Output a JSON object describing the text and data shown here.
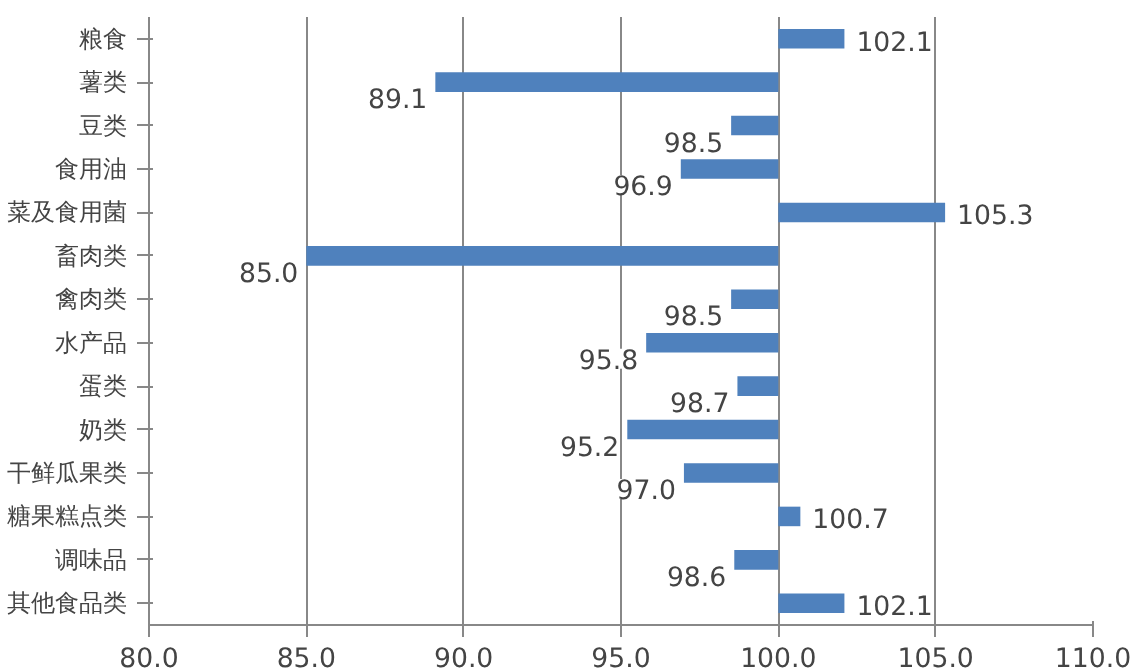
{
  "chart_data": {
    "type": "bar",
    "orientation": "horizontal",
    "categories": [
      "粮食",
      "薯类",
      "豆类",
      "食用油",
      "菜及食用菌",
      "畜肉类",
      "禽肉类",
      "水产品",
      "蛋类",
      "奶类",
      "干鲜瓜果类",
      "糖果糕点类",
      "调味品",
      "其他食品类"
    ],
    "base": [
      100,
      100,
      100,
      100,
      100,
      100,
      100,
      100,
      100,
      100,
      100,
      100,
      100,
      100
    ],
    "values": [
      2.1,
      -10.9,
      -1.5,
      -3.1,
      5.3,
      -15.0,
      -1.5,
      -4.2,
      -1.3,
      -4.8,
      -3.0,
      0.7,
      -1.4,
      2.1
    ],
    "value_labels": [
      "102.1",
      "89.1",
      "98.5",
      "96.9",
      "105.3",
      "85.0",
      "98.5",
      "95.8",
      "98.7",
      "95.2",
      "97.0",
      "100.7",
      "98.6",
      "102.1"
    ],
    "color": "#4f81bd",
    "xlim": [
      80,
      110
    ],
    "xticks": [
      {
        "value": 80,
        "label": "80.0"
      },
      {
        "value": 85,
        "label": "85.0"
      },
      {
        "value": 90,
        "label": "90.0"
      },
      {
        "value": 95,
        "label": "95.0"
      },
      {
        "value": 100,
        "label": "100.0"
      },
      {
        "value": 105,
        "label": "105.0"
      },
      {
        "value": 110,
        "label": "110.0"
      }
    ],
    "grid": "x"
  }
}
